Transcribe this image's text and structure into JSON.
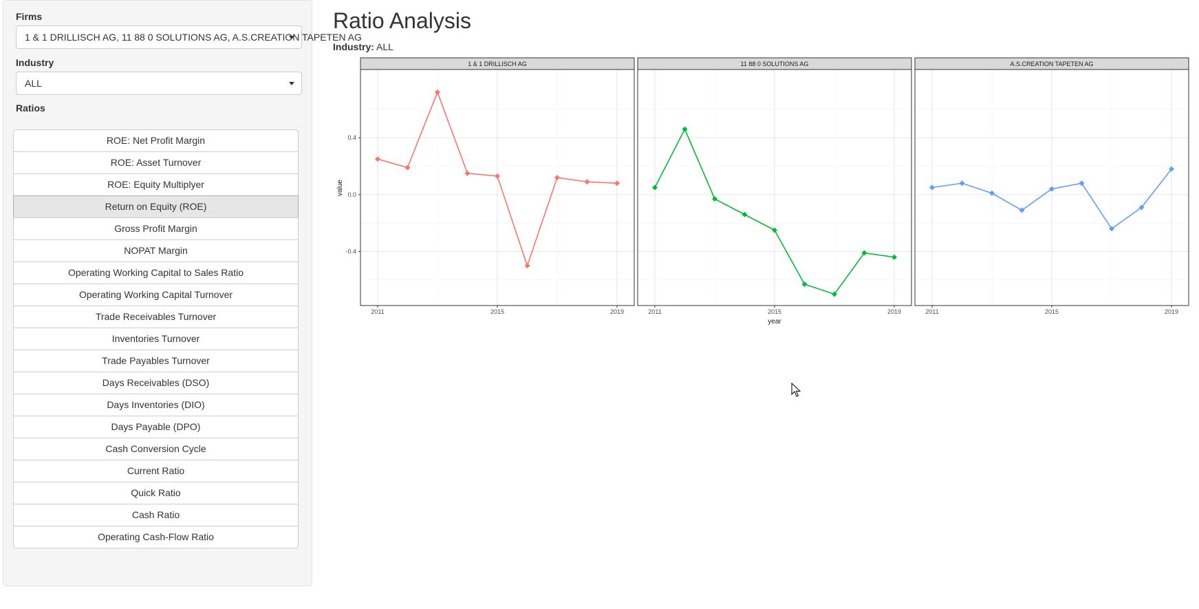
{
  "sidebar": {
    "firms_label": "Firms",
    "firms_value": "1 & 1 DRILLISCH AG, 11 88 0 SOLUTIONS AG, A.S.CREATION TAPETEN AG",
    "industry_label": "Industry",
    "industry_value": "ALL",
    "ratios_label": "Ratios",
    "ratios": [
      {
        "label": "ROE: Net Profit Margin",
        "active": false
      },
      {
        "label": "ROE: Asset Turnover",
        "active": false
      },
      {
        "label": "ROE: Equity Multiplyer",
        "active": false
      },
      {
        "label": "Return on Equity (ROE)",
        "active": true
      },
      {
        "label": "Gross Profit Margin",
        "active": false
      },
      {
        "label": "NOPAT Margin",
        "active": false
      },
      {
        "label": "Operating Working Capital to Sales Ratio",
        "active": false
      },
      {
        "label": "Operating Working Capital Turnover",
        "active": false
      },
      {
        "label": "Trade Receivables Turnover",
        "active": false
      },
      {
        "label": "Inventories Turnover",
        "active": false
      },
      {
        "label": "Trade Payables Turnover",
        "active": false
      },
      {
        "label": "Days Receivables (DSO)",
        "active": false
      },
      {
        "label": "Days Inventories (DIO)",
        "active": false
      },
      {
        "label": "Days Payable (DPO)",
        "active": false
      },
      {
        "label": "Cash Conversion Cycle",
        "active": false
      },
      {
        "label": "Current Ratio",
        "active": false
      },
      {
        "label": "Quick Ratio",
        "active": false
      },
      {
        "label": "Cash Ratio",
        "active": false
      },
      {
        "label": "Operating Cash-Flow Ratio",
        "active": false
      }
    ]
  },
  "main": {
    "title": "Ratio Analysis",
    "industry_prefix": "Industry:",
    "industry_value": "ALL"
  },
  "chart_data": {
    "type": "line",
    "xlabel": "year",
    "ylabel": "value",
    "x": [
      2011,
      2012,
      2013,
      2014,
      2015,
      2016,
      2017,
      2018,
      2019
    ],
    "xticks": [
      2011,
      2015,
      2019
    ],
    "yticks": [
      -0.4,
      0.0,
      0.4
    ],
    "ytick_labels": [
      "-0.4",
      "0.0",
      "0.4"
    ],
    "ylim": [
      -0.78,
      0.88
    ],
    "grid": true,
    "legend": "none",
    "panels": [
      {
        "name": "1 & 1 DRILLISCH AG",
        "color": "#F8766D",
        "values": [
          0.25,
          0.19,
          0.72,
          0.15,
          0.13,
          -0.5,
          0.12,
          0.09,
          0.08
        ]
      },
      {
        "name": "11 88 0 SOLUTIONS AG",
        "color": "#00BA38",
        "values": [
          0.05,
          0.46,
          -0.03,
          -0.14,
          -0.25,
          -0.63,
          -0.7,
          -0.41,
          -0.44
        ]
      },
      {
        "name": "A.S.CREATION TAPETEN AG",
        "color": "#619CFF",
        "values": [
          0.05,
          0.08,
          0.01,
          -0.11,
          0.04,
          0.08,
          -0.24,
          -0.09,
          0.18
        ]
      }
    ]
  }
}
